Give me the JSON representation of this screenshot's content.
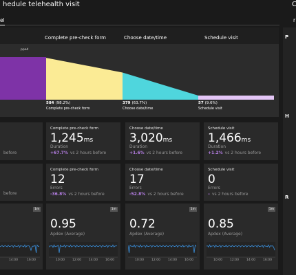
{
  "header": {
    "title": "hedule telehealth visit",
    "right": "C"
  },
  "tabs": {
    "active": "el",
    "right": "r"
  },
  "sidebar": [
    "P",
    "H",
    "R"
  ],
  "funnel": {
    "legend": "pped",
    "columns": [
      "Complete pre-check form",
      "Choose date/time",
      "Schedule visit"
    ],
    "steps": [
      {
        "count": "584",
        "percent": 98.2,
        "percent_label": "(98.2%)",
        "name": "Complete pre-check form",
        "color": "#fbeb95"
      },
      {
        "count": "379",
        "percent": 63.7,
        "percent_label": "(63.7%)",
        "name": "Choose date/time",
        "color": "#4fd6dd"
      },
      {
        "count": "57",
        "percent": 9.6,
        "percent_label": "(9.6%)",
        "name": "Schedule visit",
        "color": "#e4c6f6"
      }
    ]
  },
  "duration_cards": {
    "left_fragment": "before",
    "cards": [
      {
        "step": "Complete pre-check form",
        "value": "1,245",
        "unit": "ms",
        "metric": "Duration",
        "change": "+67.7%",
        "compare": "vs 2 hours before"
      },
      {
        "step": "Choose date/time",
        "value": "3,020",
        "unit": "ms",
        "metric": "Duration",
        "change": "+1.6%",
        "compare": "vs 2 hours before"
      },
      {
        "step": "Schedule visit",
        "value": "1,466",
        "unit": "ms",
        "metric": "Duration",
        "change": "+1.2%",
        "compare": "vs 2 hours before"
      }
    ]
  },
  "error_cards": {
    "left_fragment": "before",
    "cards": [
      {
        "step": "Complete pre-check form",
        "value": "12",
        "metric": "Errors",
        "change": "-36.8%",
        "compare": "vs 2 hours before"
      },
      {
        "step": "Choose date/time",
        "value": "17",
        "metric": "Errors",
        "change": "-52.8%",
        "compare": "vs 2 hours before"
      },
      {
        "step": "Schedule visit",
        "value": "0",
        "metric": "Errors",
        "change": "–",
        "compare": "vs 2 hours before"
      }
    ]
  },
  "apdex_cards": {
    "left_fragment": {
      "badge": "1m",
      "times": [
        "14:00",
        "16:00"
      ]
    },
    "cards": [
      {
        "badge": "1m",
        "value": "0.95",
        "metric": "Apdex (Average)",
        "times": [
          "10:00",
          "12:00",
          "14:00",
          "16:00"
        ]
      },
      {
        "badge": "1m",
        "value": "0.72",
        "metric": "Apdex (Average)",
        "times": [
          "10:00",
          "12:00",
          "14:00",
          "16:00"
        ]
      },
      {
        "badge": "1m",
        "value": "0.85",
        "metric": "Apdex (Average)",
        "times": [
          "10:00",
          "12:00",
          "14:00",
          "16:00"
        ]
      }
    ]
  }
}
